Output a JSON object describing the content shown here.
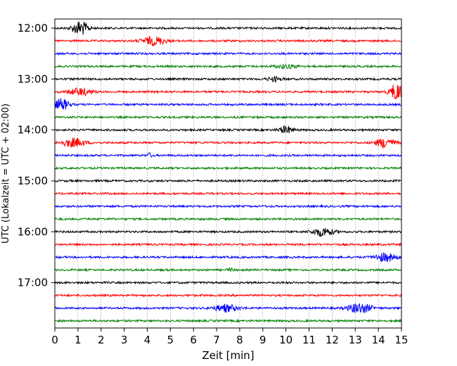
{
  "chart_data": {
    "type": "line",
    "title": "",
    "xlabel": "Zeit  [min]",
    "ylabel": "UTC (Lokalzeit = UTC + 02:00)",
    "xlim": [
      0,
      15
    ],
    "x_ticks": [
      "0",
      "1",
      "2",
      "3",
      "4",
      "5",
      "6",
      "7",
      "8",
      "9",
      "10",
      "11",
      "12",
      "13",
      "14",
      "15"
    ],
    "y_ticks": [
      {
        "label": "12:00",
        "trace": 0
      },
      {
        "label": "13:00",
        "trace": 4
      },
      {
        "label": "14:00",
        "trace": 8
      },
      {
        "label": "15:00",
        "trace": 12
      },
      {
        "label": "16:00",
        "trace": 16
      },
      {
        "label": "17:00",
        "trace": 20
      }
    ],
    "grid": "vertical-dotted",
    "colors": [
      "#000000",
      "#ff0000",
      "#0000ff",
      "#008000"
    ],
    "traces": [
      {
        "start": "12:00",
        "events": [
          {
            "t": 1.1,
            "amp": 10,
            "w": 0.35
          }
        ]
      },
      {
        "start": "12:15",
        "events": [
          {
            "t": 4.3,
            "amp": 6,
            "w": 0.5
          }
        ]
      },
      {
        "start": "12:30",
        "events": []
      },
      {
        "start": "12:45",
        "events": [
          {
            "t": 10.0,
            "amp": 2.5,
            "w": 0.5
          }
        ]
      },
      {
        "start": "13:00",
        "events": [
          {
            "t": 9.5,
            "amp": 3,
            "w": 0.3
          }
        ]
      },
      {
        "start": "13:15",
        "events": [
          {
            "t": 1.1,
            "amp": 5,
            "w": 0.5
          },
          {
            "t": 14.8,
            "amp": 12,
            "w": 0.3
          }
        ]
      },
      {
        "start": "13:30",
        "events": [
          {
            "t": 0.3,
            "amp": 8,
            "w": 0.3
          }
        ]
      },
      {
        "start": "13:45",
        "events": []
      },
      {
        "start": "14:00",
        "events": [
          {
            "t": 10.0,
            "amp": 5,
            "w": 0.3
          }
        ]
      },
      {
        "start": "14:15",
        "events": [
          {
            "t": 0.8,
            "amp": 6,
            "w": 0.5
          },
          {
            "t": 14.3,
            "amp": 7,
            "w": 0.4
          }
        ]
      },
      {
        "start": "14:30",
        "events": [
          {
            "t": 4.1,
            "amp": 3,
            "w": 0.1
          }
        ]
      },
      {
        "start": "14:45",
        "events": []
      },
      {
        "start": "15:00",
        "events": []
      },
      {
        "start": "15:15",
        "events": []
      },
      {
        "start": "15:30",
        "events": []
      },
      {
        "start": "15:45",
        "events": []
      },
      {
        "start": "16:00",
        "events": [
          {
            "t": 11.6,
            "amp": 6,
            "w": 0.45
          }
        ]
      },
      {
        "start": "16:15",
        "events": []
      },
      {
        "start": "16:30",
        "events": [
          {
            "t": 14.3,
            "amp": 6,
            "w": 0.45
          }
        ]
      },
      {
        "start": "16:45",
        "events": [
          {
            "t": 7.6,
            "amp": 2.5,
            "w": 0.1
          }
        ]
      },
      {
        "start": "17:00",
        "events": []
      },
      {
        "start": "17:15",
        "events": []
      },
      {
        "start": "17:30",
        "events": [
          {
            "t": 7.4,
            "amp": 5,
            "w": 0.5
          },
          {
            "t": 13.2,
            "amp": 7,
            "w": 0.5
          }
        ]
      },
      {
        "start": "17:45",
        "events": []
      }
    ]
  }
}
